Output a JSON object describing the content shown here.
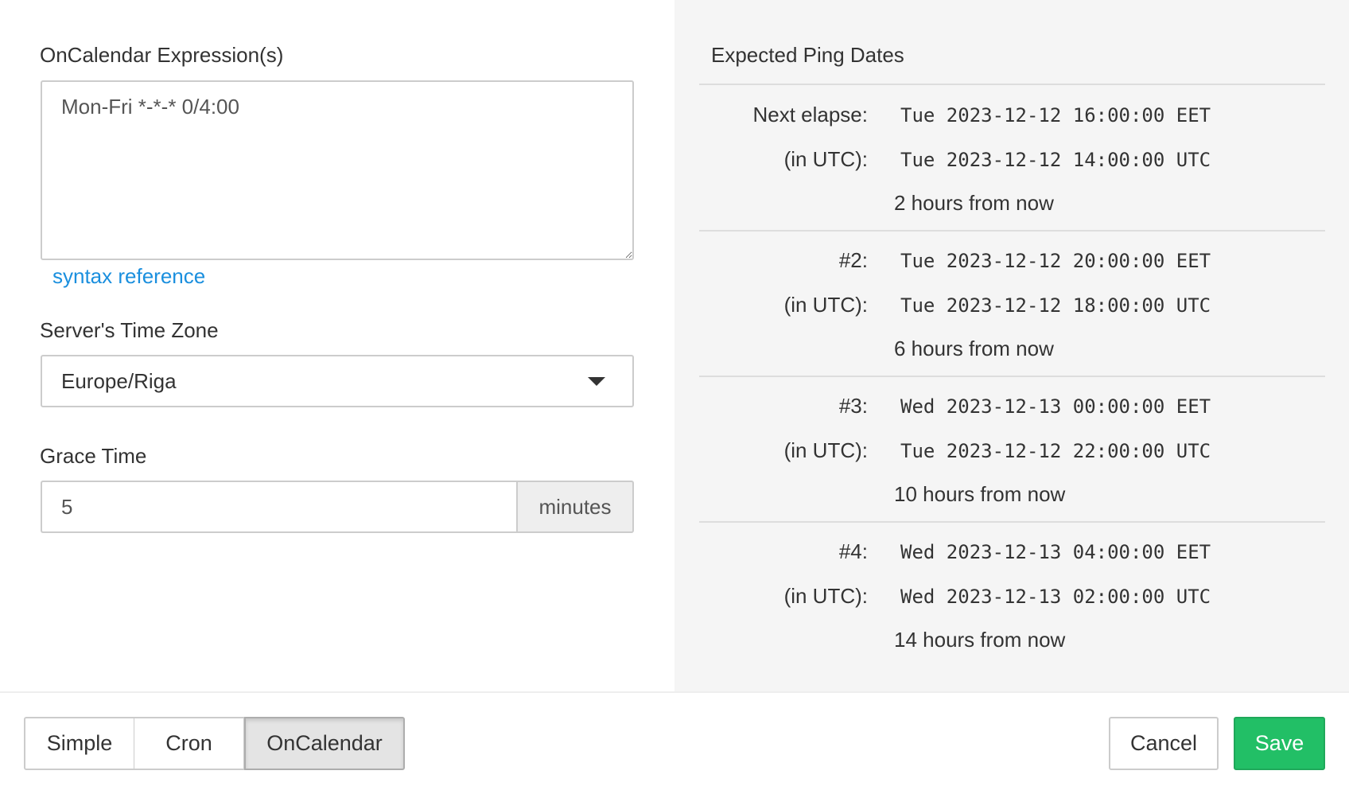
{
  "form": {
    "expression_label": "OnCalendar Expression(s)",
    "expression_value": "Mon-Fri *-*-* 0/4:00",
    "syntax_link": "syntax reference",
    "timezone_label": "Server's Time Zone",
    "timezone_value": "Europe/Riga",
    "grace_label": "Grace Time",
    "grace_value": "5",
    "grace_unit": "minutes"
  },
  "preview": {
    "title": "Expected Ping Dates",
    "entries": [
      {
        "label": "Next elapse:",
        "local": "Tue 2023-12-12 16:00:00 EET",
        "utc_label": "(in UTC):",
        "utc": "Tue 2023-12-12 14:00:00 UTC",
        "relative": "2 hours from now"
      },
      {
        "label": "#2:",
        "local": "Tue 2023-12-12 20:00:00 EET",
        "utc_label": "(in UTC):",
        "utc": "Tue 2023-12-12 18:00:00 UTC",
        "relative": "6 hours from now"
      },
      {
        "label": "#3:",
        "local": "Wed 2023-12-13 00:00:00 EET",
        "utc_label": "(in UTC):",
        "utc": "Tue 2023-12-12 22:00:00 UTC",
        "relative": "10 hours from now"
      },
      {
        "label": "#4:",
        "local": "Wed 2023-12-13 04:00:00 EET",
        "utc_label": "(in UTC):",
        "utc": "Wed 2023-12-13 02:00:00 UTC",
        "relative": "14 hours from now"
      }
    ]
  },
  "footer": {
    "modes": [
      "Simple",
      "Cron",
      "OnCalendar"
    ],
    "active_mode": "OnCalendar",
    "cancel": "Cancel",
    "save": "Save"
  },
  "colors": {
    "accent_link": "#1a8fde",
    "save": "#22bf66",
    "panel_bg": "#f5f5f5"
  }
}
